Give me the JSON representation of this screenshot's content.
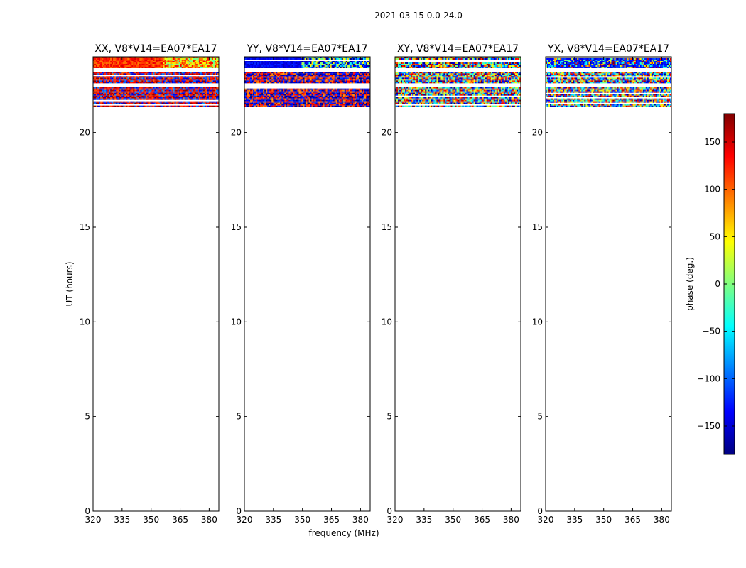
{
  "figure": {
    "suptitle": "2021-03-15 0.0-24.0",
    "xlabel": "frequency (MHz)",
    "ylabel": "UT (hours)",
    "colorbar_label": "phase (deg.)"
  },
  "chart_data": {
    "type": "heatmap",
    "x_range": [
      320,
      385
    ],
    "y_range": [
      0,
      24
    ],
    "x_ticks": [
      320,
      335,
      350,
      365,
      380
    ],
    "x_tick_labels": [
      "320",
      "335",
      "350",
      "365",
      "380"
    ],
    "y_ticks": [
      0,
      5,
      10,
      15,
      20
    ],
    "y_tick_labels": [
      "0",
      "5",
      "10",
      "15",
      "20"
    ],
    "color_range": [
      -180,
      180
    ],
    "colorbar_ticks": [
      150,
      100,
      50,
      0,
      -50,
      -100,
      -150
    ],
    "colorbar_tick_labels": [
      "150",
      "100",
      "50",
      "0",
      "−50",
      "−100",
      "−150"
    ],
    "colormap": "jet",
    "data_bands": [
      {
        "start": 23.4,
        "end": 24.0
      },
      {
        "start": 22.6,
        "end": 23.2
      },
      {
        "start": 21.4,
        "end": 22.4
      }
    ],
    "panels": [
      {
        "title": "XX, V8*V14=EA07*EA17",
        "pattern": "xx"
      },
      {
        "title": "YY, V8*V14=EA07*EA17",
        "pattern": "yy"
      },
      {
        "title": "XY, V8*V14=EA07*EA17",
        "pattern": "noise"
      },
      {
        "title": "YX, V8*V14=EA07*EA17",
        "pattern": "noise-blue"
      }
    ]
  }
}
